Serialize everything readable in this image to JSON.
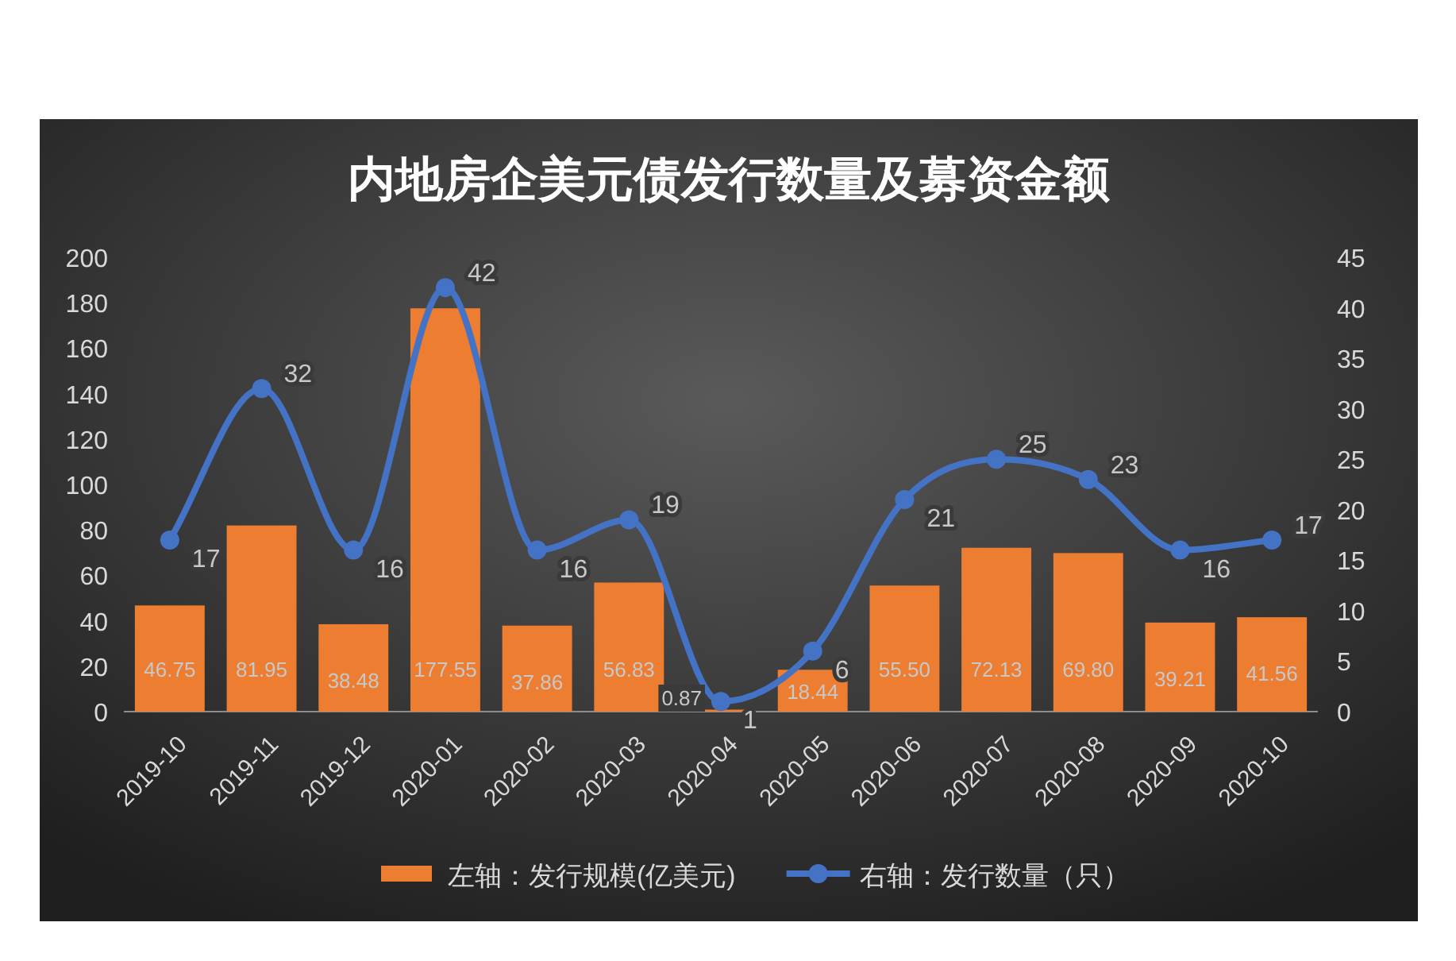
{
  "chart_data": {
    "type": "bar",
    "title": "内地房企美元债发行数量及募资金额",
    "categories": [
      "2019-10",
      "2019-11",
      "2019-12",
      "2020-01",
      "2020-02",
      "2020-03",
      "2020-04",
      "2020-05",
      "2020-06",
      "2020-07",
      "2020-08",
      "2020-09",
      "2020-10"
    ],
    "series": [
      {
        "name": "左轴：发行规模(亿美元)",
        "color": "#ed7d31",
        "values": [
          46.75,
          81.95,
          38.48,
          177.55,
          37.86,
          56.83,
          0.87,
          18.44,
          55.5,
          72.13,
          69.8,
          39.21,
          41.56
        ],
        "value_labels": [
          "46.75",
          "81.95",
          "38.48",
          "177.55",
          "37.86",
          "56.83",
          "0.87",
          "18.44",
          "55.50",
          "72.13",
          "69.80",
          "39.21",
          "41.56"
        ]
      },
      {
        "name": "右轴：发行数量（只）",
        "type": "line",
        "axis": "y2",
        "color": "#4472c4",
        "values": [
          17,
          32,
          16,
          42,
          16,
          19,
          1,
          6,
          21,
          25,
          23,
          16,
          17
        ],
        "value_labels": [
          "17",
          "32",
          "16",
          "42",
          "16",
          "19",
          "1",
          "6",
          "21",
          "25",
          "23",
          "16",
          "17"
        ]
      }
    ],
    "ylim": [
      0,
      200
    ],
    "yticks": [
      0,
      20,
      40,
      60,
      80,
      100,
      120,
      140,
      160,
      180,
      200
    ],
    "y2lim": [
      0,
      45
    ],
    "y2ticks": [
      0,
      5,
      10,
      15,
      20,
      25,
      30,
      35,
      40,
      45
    ],
    "marker": "circle",
    "line_style": "solid",
    "legend": "bottom"
  }
}
